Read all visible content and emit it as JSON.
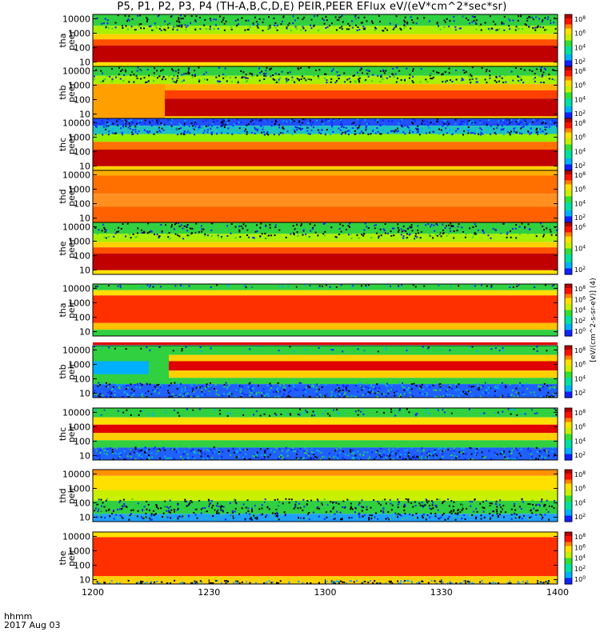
{
  "title": "P5, P1, P2, P3, P4 (TH-A,B,C,D,E) PEIR,PEER EFlux eV/(eV*cm^2*sec*sr)",
  "x_axis_label": "hhmm",
  "x_axis_date": "2017 Aug 03",
  "colorbar_label": "[eV/(cm^2-s-sr-eV)] (4)",
  "chart_data": {
    "type": "heatmap",
    "title": "P5, P1, P2, P3, P4 (TH-A,B,C,D,E) PEIR,PEER EFlux eV/(eV*cm^2*sec*sr)",
    "xlabel": "hhmm",
    "x_ticks": [
      "1200",
      "1230",
      "1300",
      "1330",
      "1400"
    ],
    "xlim": [
      "12:00",
      "14:00"
    ],
    "y_scale": "log",
    "y_ticks": [
      "10",
      "100",
      "1000",
      "10000"
    ],
    "ylim": [
      5,
      20000
    ],
    "colorscale": "rainbow",
    "panels": [
      {
        "label": "tha peer",
        "line1": "tha",
        "line2": "peer",
        "colorbar_ticks": [
          "10^2",
          "10^4",
          "10^6",
          "10^8"
        ]
      },
      {
        "label": "thb peer",
        "line1": "thb",
        "line2": "peer",
        "colorbar_ticks": [
          "10^2",
          "10^4",
          "10^6",
          "10^8"
        ]
      },
      {
        "label": "thc peer",
        "line1": "thc",
        "line2": "peer",
        "colorbar_ticks": [
          "10^2",
          "10^4",
          "10^6",
          "10^8"
        ]
      },
      {
        "label": "thd peer",
        "line1": "thd",
        "line2": "peer",
        "colorbar_ticks": [
          "10^2",
          "10^4",
          "10^6",
          "10^8"
        ]
      },
      {
        "label": "the peer",
        "line1": "the",
        "line2": "peer",
        "colorbar_ticks": [
          "10^2",
          "10^4",
          "10^6"
        ]
      },
      {
        "label": "tha peir",
        "line1": "tha",
        "line2": "peir",
        "colorbar_ticks": [
          "10^0",
          "10^2",
          "10^4",
          "10^6",
          "10^8"
        ]
      },
      {
        "label": "thb peir",
        "line1": "thb",
        "line2": "peir",
        "colorbar_ticks": [
          "10^2",
          "10^4",
          "10^6",
          "10^8"
        ]
      },
      {
        "label": "thc peir",
        "line1": "thc",
        "line2": "peir",
        "colorbar_ticks": [
          "10^2",
          "10^4",
          "10^6",
          "10^8"
        ]
      },
      {
        "label": "thd peir",
        "line1": "thd",
        "line2": "peir",
        "colorbar_ticks": [
          "10^2",
          "10^4",
          "10^6",
          "10^8"
        ]
      },
      {
        "label": "the peir",
        "line1": "the",
        "line2": "peir",
        "colorbar_ticks": [
          "10^0",
          "10^2",
          "10^4",
          "10^6",
          "10^8"
        ]
      }
    ]
  }
}
